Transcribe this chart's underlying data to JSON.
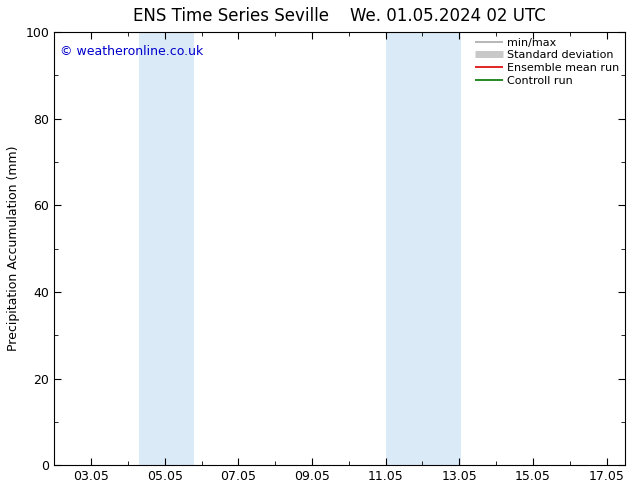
{
  "title_left": "ENS Time Series Seville",
  "title_right": "We. 01.05.2024 02 UTC",
  "ylabel": "Precipitation Accumulation (mm)",
  "watermark": "© weatheronline.co.uk",
  "watermark_color": "#0000cc",
  "ylim": [
    0,
    100
  ],
  "yticks": [
    0,
    20,
    40,
    60,
    80,
    100
  ],
  "xlim": [
    2.0,
    17.5
  ],
  "xtick_labels": [
    "03.05",
    "05.05",
    "07.05",
    "09.05",
    "11.05",
    "13.05",
    "15.05",
    "17.05"
  ],
  "xtick_positions_day": [
    3,
    5,
    7,
    9,
    11,
    13,
    15,
    17
  ],
  "shaded_bands": [
    {
      "x_start_day": 4.3,
      "x_end_day": 5.8,
      "color": "#daeaf7"
    },
    {
      "x_start_day": 11.0,
      "x_end_day": 13.05,
      "color": "#daeaf7"
    }
  ],
  "legend_entries": [
    {
      "label": "min/max",
      "color": "#aaaaaa",
      "lw": 1.2
    },
    {
      "label": "Standard deviation",
      "color": "#c8c8c8",
      "lw": 5
    },
    {
      "label": "Ensemble mean run",
      "color": "#dd0000",
      "lw": 1.2
    },
    {
      "label": "Controll run",
      "color": "#007700",
      "lw": 1.2
    }
  ],
  "background_color": "#ffffff",
  "title_fontsize": 12,
  "axis_label_fontsize": 9,
  "tick_fontsize": 9,
  "legend_fontsize": 8
}
